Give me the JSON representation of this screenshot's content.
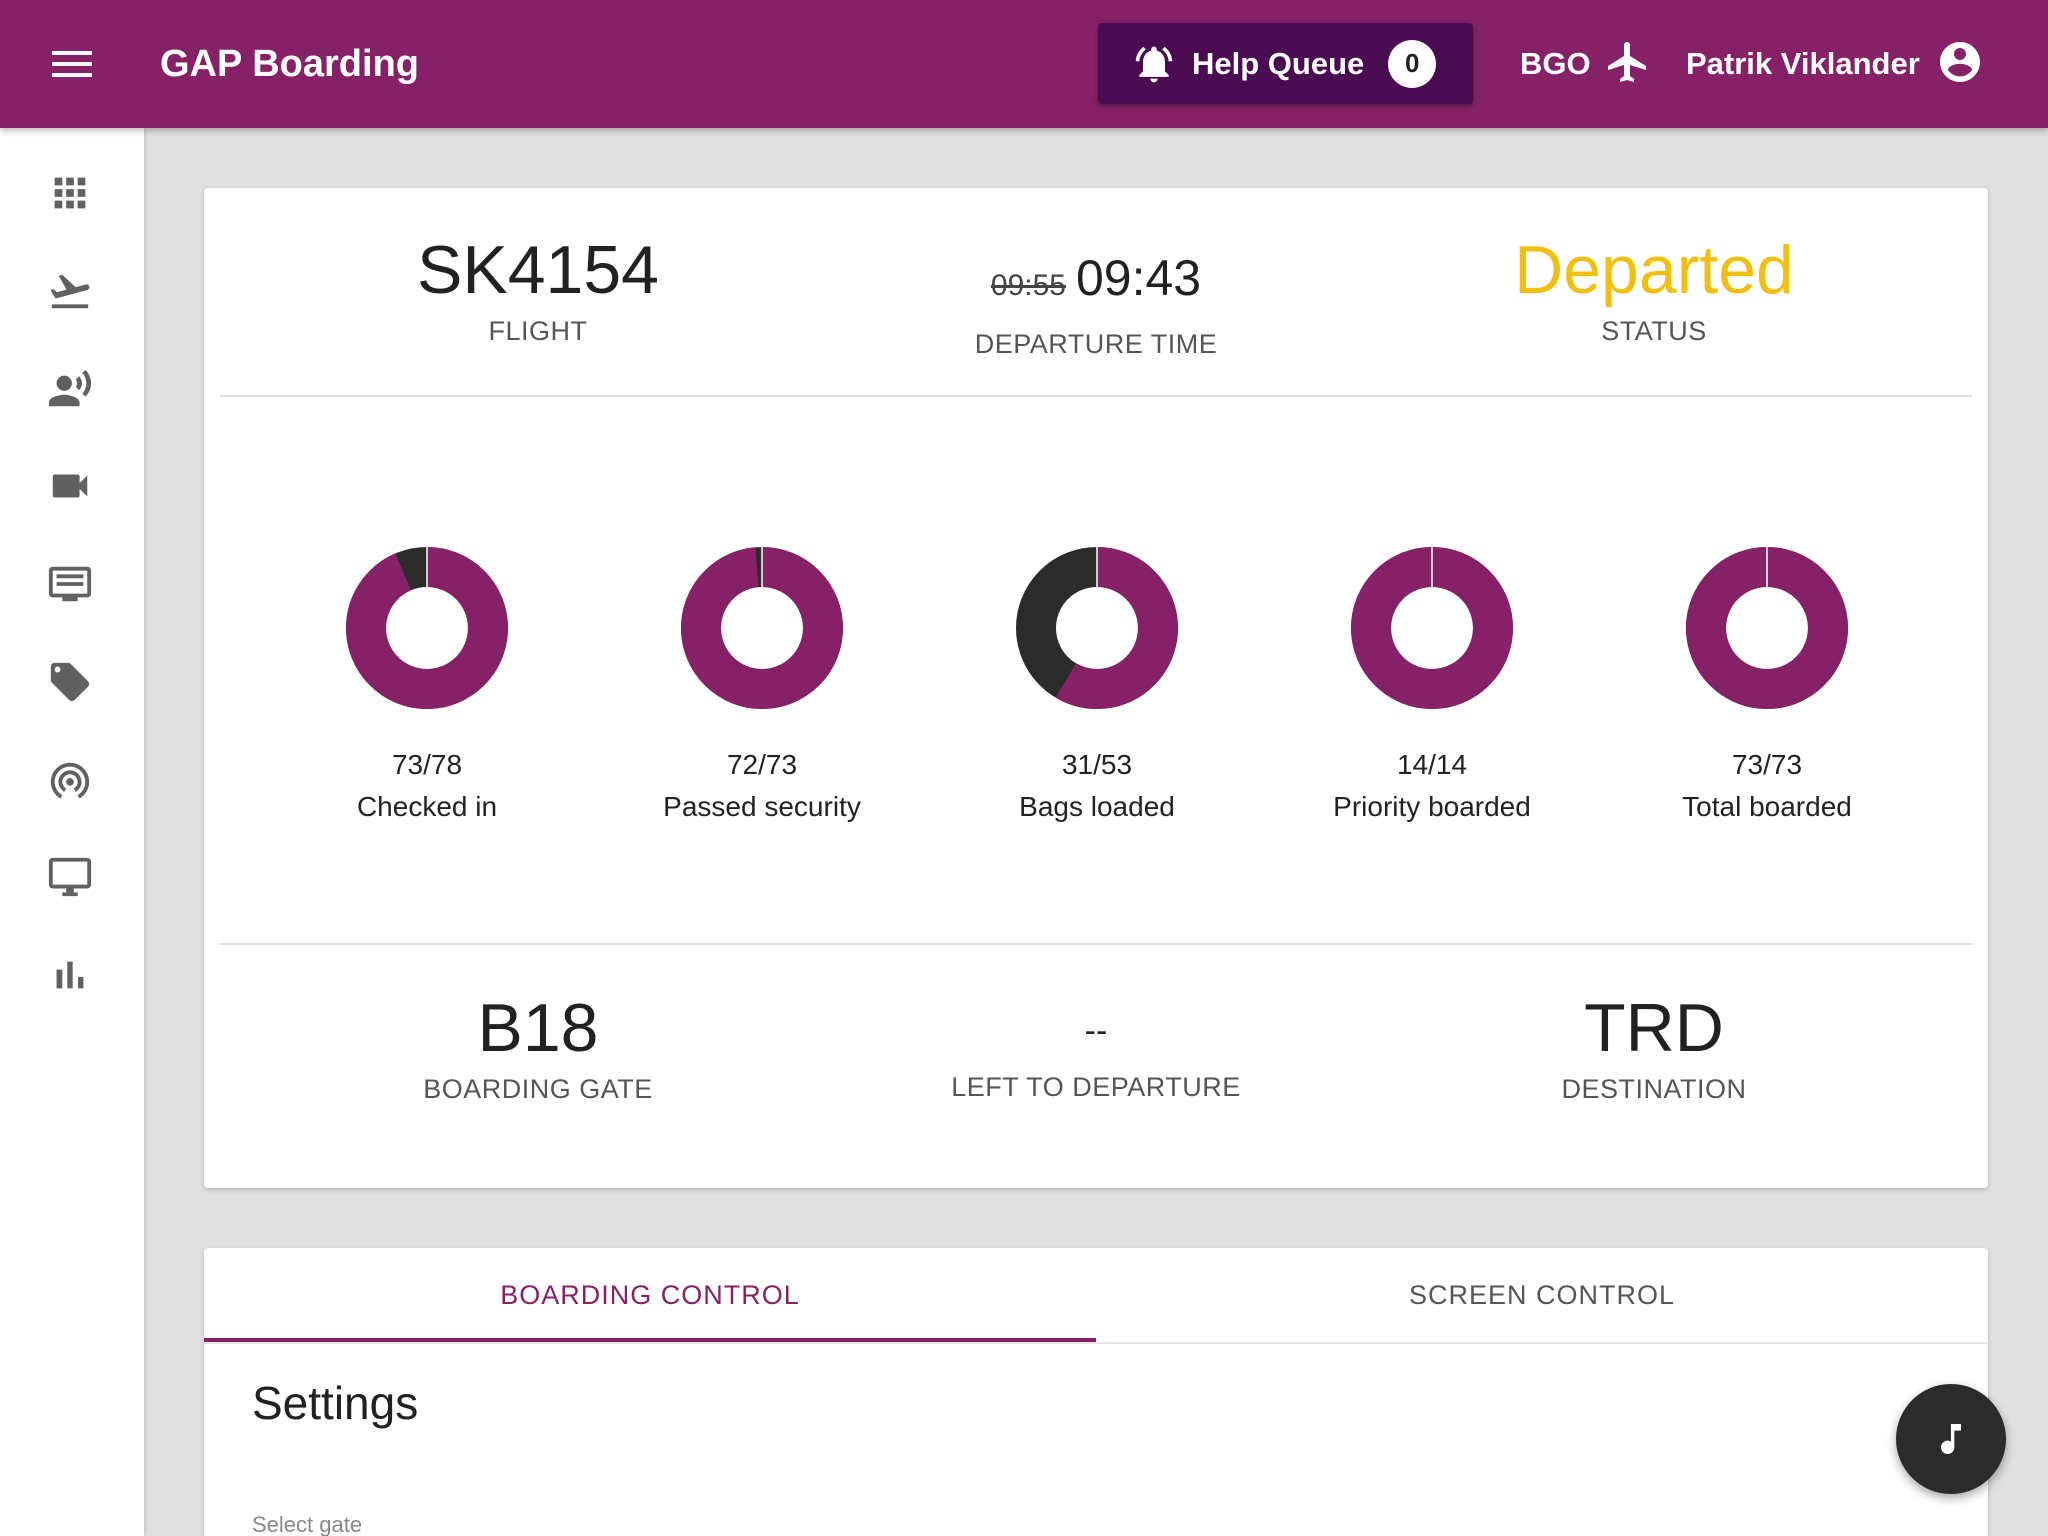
{
  "app": {
    "title": "GAP Boarding"
  },
  "header": {
    "help_queue_label": "Help Queue",
    "help_queue_count": "0",
    "airport": "BGO",
    "user_name": "Patrik Viklander"
  },
  "sidebar": {
    "items": [
      {
        "icon": "apps-grid-icon"
      },
      {
        "icon": "flight-takeoff-icon"
      },
      {
        "icon": "record-voice-icon"
      },
      {
        "icon": "videocam-icon"
      },
      {
        "icon": "featured-list-icon"
      },
      {
        "icon": "label-tag-icon"
      },
      {
        "icon": "wifi-tethering-icon"
      },
      {
        "icon": "desktop-monitor-icon"
      },
      {
        "icon": "bar-chart-icon"
      }
    ]
  },
  "flight": {
    "number": "SK4154",
    "number_label": "FLIGHT",
    "scheduled_time": "09:55",
    "actual_time": "09:43",
    "departure_label": "DEPARTURE TIME",
    "status": "Departed",
    "status_label": "STATUS",
    "gate": "B18",
    "gate_label": "BOARDING GATE",
    "left_to_departure": "--",
    "left_to_departure_label": "LEFT TO DEPARTURE",
    "destination": "TRD",
    "destination_label": "DESTINATION"
  },
  "stats": [
    {
      "ratio": "73/78",
      "label": "Checked in",
      "done": 73,
      "total": 78
    },
    {
      "ratio": "72/73",
      "label": "Passed security",
      "done": 72,
      "total": 73
    },
    {
      "ratio": "31/53",
      "label": "Bags loaded",
      "done": 31,
      "total": 53
    },
    {
      "ratio": "14/14",
      "label": "Priority boarded",
      "done": 14,
      "total": 14
    },
    {
      "ratio": "73/73",
      "label": "Total boarded",
      "done": 73,
      "total": 73
    }
  ],
  "colors": {
    "primary": "#862168",
    "remaining": "#2b2b2b",
    "status": "#f2bf0c"
  },
  "tabs": [
    {
      "label": "BOARDING CONTROL",
      "active": true
    },
    {
      "label": "SCREEN CONTROL",
      "active": false
    }
  ],
  "settings": {
    "title": "Settings",
    "select_gate_label": "Select gate"
  },
  "fab": {
    "icon": "music-note-icon"
  }
}
